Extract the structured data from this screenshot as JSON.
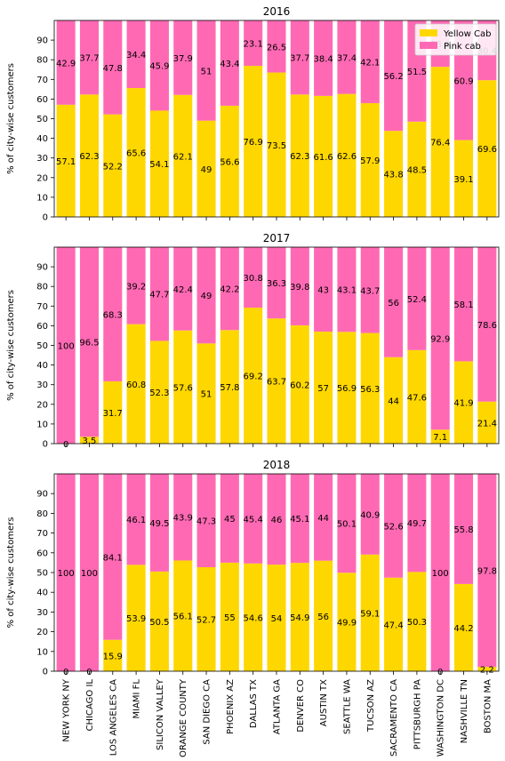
{
  "chart_data": [
    {
      "type": "bar",
      "stacked": true,
      "title": "2016",
      "ylabel": "% of city-wise customers",
      "ylim": [
        0,
        100
      ],
      "yticks": [
        0,
        10,
        20,
        30,
        40,
        50,
        60,
        70,
        80,
        90
      ],
      "legend": "top-right",
      "grid": false,
      "categories": [
        "NEW YORK NY",
        "CHICAGO IL",
        "LOS ANGELES CA",
        "MIAMI FL",
        "SILICON VALLEY",
        "ORANGE COUNTY",
        "SAN DIEGO CA",
        "PHOENIX AZ",
        "DALLAS TX",
        "ATLANTA GA",
        "DENVER CO",
        "AUSTIN TX",
        "SEATTLE WA",
        "TUCSON AZ",
        "SACRAMENTO CA",
        "PITTSBURGH PA",
        "WASHINGTON DC",
        "NASHVILLE TN",
        "BOSTON MA"
      ],
      "series": [
        {
          "name": "Yellow Cab",
          "color": "#FFD700",
          "values": [
            57.1,
            62.3,
            52.2,
            65.6,
            54.1,
            62.1,
            49,
            56.6,
            76.9,
            73.5,
            62.3,
            61.6,
            62.6,
            57.9,
            43.8,
            48.5,
            76.4,
            39.1,
            69.6
          ]
        },
        {
          "name": "Pink cab",
          "color": "#FF69B4",
          "values": [
            42.9,
            37.7,
            47.8,
            34.4,
            45.9,
            37.9,
            51,
            43.4,
            23.1,
            26.5,
            37.7,
            38.4,
            37.4,
            42.1,
            56.2,
            51.5,
            23.6,
            60.9,
            30.4
          ]
        }
      ]
    },
    {
      "type": "bar",
      "stacked": true,
      "title": "2017",
      "ylabel": "% of city-wise customers",
      "ylim": [
        0,
        100
      ],
      "yticks": [
        0,
        10,
        20,
        30,
        40,
        50,
        60,
        70,
        80,
        90
      ],
      "grid": false,
      "categories": [
        "NEW YORK NY",
        "CHICAGO IL",
        "LOS ANGELES CA",
        "MIAMI FL",
        "SILICON VALLEY",
        "ORANGE COUNTY",
        "SAN DIEGO CA",
        "PHOENIX AZ",
        "DALLAS TX",
        "ATLANTA GA",
        "DENVER CO",
        "AUSTIN TX",
        "SEATTLE WA",
        "TUCSON AZ",
        "SACRAMENTO CA",
        "PITTSBURGH PA",
        "WASHINGTON DC",
        "NASHVILLE TN",
        "BOSTON MA"
      ],
      "series": [
        {
          "name": "Yellow Cab",
          "color": "#FFD700",
          "values": [
            0,
            3.5,
            31.7,
            60.8,
            52.3,
            57.6,
            51,
            57.8,
            69.2,
            63.7,
            60.2,
            57,
            56.9,
            56.3,
            44,
            47.6,
            7.1,
            41.9,
            21.4
          ]
        },
        {
          "name": "Pink cab",
          "color": "#FF69B4",
          "values": [
            100,
            96.5,
            68.3,
            39.2,
            47.7,
            42.4,
            49,
            42.2,
            30.8,
            36.3,
            39.8,
            43,
            43.1,
            43.7,
            56,
            52.4,
            92.9,
            58.1,
            78.6
          ]
        }
      ]
    },
    {
      "type": "bar",
      "stacked": true,
      "title": "2018",
      "ylabel": "% of city-wise customers",
      "ylim": [
        0,
        100
      ],
      "yticks": [
        0,
        10,
        20,
        30,
        40,
        50,
        60,
        70,
        80,
        90
      ],
      "grid": false,
      "categories": [
        "NEW YORK NY",
        "CHICAGO IL",
        "LOS ANGELES CA",
        "MIAMI FL",
        "SILICON VALLEY",
        "ORANGE COUNTY",
        "SAN DIEGO CA",
        "PHOENIX AZ",
        "DALLAS TX",
        "ATLANTA GA",
        "DENVER CO",
        "AUSTIN TX",
        "SEATTLE WA",
        "TUCSON AZ",
        "SACRAMENTO CA",
        "PITTSBURGH PA",
        "WASHINGTON DC",
        "NASHVILLE TN",
        "BOSTON MA"
      ],
      "series": [
        {
          "name": "Yellow Cab",
          "color": "#FFD700",
          "values": [
            0,
            0,
            15.9,
            53.9,
            50.5,
            56.1,
            52.7,
            55,
            54.6,
            54,
            54.9,
            56,
            49.9,
            59.1,
            47.4,
            50.3,
            0,
            44.2,
            2.2
          ]
        },
        {
          "name": "Pink cab",
          "color": "#FF69B4",
          "values": [
            100,
            100,
            84.1,
            46.1,
            49.5,
            43.9,
            47.3,
            45,
            45.4,
            46,
            45.1,
            44,
            50.1,
            40.9,
            52.6,
            49.7,
            100,
            55.8,
            97.8
          ]
        }
      ]
    }
  ]
}
